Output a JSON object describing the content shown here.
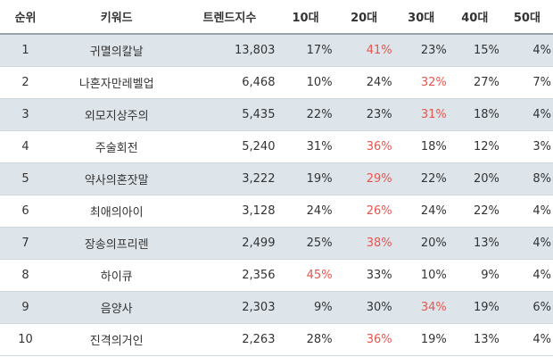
{
  "headers": {
    "rank": "순위",
    "keyword": "키워드",
    "trend": "트렌드지수",
    "age10": "10대",
    "age20": "20대",
    "age30": "30대",
    "age40": "40대",
    "age50": "50대"
  },
  "highlight_color": "#e8554e",
  "rows": [
    {
      "rank": "1",
      "keyword": "귀멸의칼날",
      "trend": "13,803",
      "age10": "17%",
      "age20": "41%",
      "age30": "23%",
      "age40": "15%",
      "age50": "4%",
      "highlight": "age20"
    },
    {
      "rank": "2",
      "keyword": "나혼자만레벨업",
      "trend": "6,468",
      "age10": "10%",
      "age20": "24%",
      "age30": "32%",
      "age40": "27%",
      "age50": "7%",
      "highlight": "age30"
    },
    {
      "rank": "3",
      "keyword": "외모지상주의",
      "trend": "5,435",
      "age10": "22%",
      "age20": "23%",
      "age30": "31%",
      "age40": "18%",
      "age50": "4%",
      "highlight": "age30"
    },
    {
      "rank": "4",
      "keyword": "주술회전",
      "trend": "5,240",
      "age10": "31%",
      "age20": "36%",
      "age30": "18%",
      "age40": "12%",
      "age50": "3%",
      "highlight": "age20"
    },
    {
      "rank": "5",
      "keyword": "약사의혼잣말",
      "trend": "3,222",
      "age10": "19%",
      "age20": "29%",
      "age30": "22%",
      "age40": "20%",
      "age50": "8%",
      "highlight": "age20"
    },
    {
      "rank": "6",
      "keyword": "최애의아이",
      "trend": "3,128",
      "age10": "24%",
      "age20": "26%",
      "age30": "24%",
      "age40": "22%",
      "age50": "4%",
      "highlight": "age20"
    },
    {
      "rank": "7",
      "keyword": "장송의프리렌",
      "trend": "2,499",
      "age10": "25%",
      "age20": "38%",
      "age30": "20%",
      "age40": "13%",
      "age50": "4%",
      "highlight": "age20"
    },
    {
      "rank": "8",
      "keyword": "하이큐",
      "trend": "2,356",
      "age10": "45%",
      "age20": "33%",
      "age30": "10%",
      "age40": "9%",
      "age50": "4%",
      "highlight": "age10"
    },
    {
      "rank": "9",
      "keyword": "음양사",
      "trend": "2,303",
      "age10": "9%",
      "age20": "30%",
      "age30": "34%",
      "age40": "19%",
      "age50": "6%",
      "highlight": "age30"
    },
    {
      "rank": "10",
      "keyword": "진격의거인",
      "trend": "2,263",
      "age10": "28%",
      "age20": "36%",
      "age30": "19%",
      "age40": "13%",
      "age50": "4%",
      "highlight": "age20"
    }
  ]
}
